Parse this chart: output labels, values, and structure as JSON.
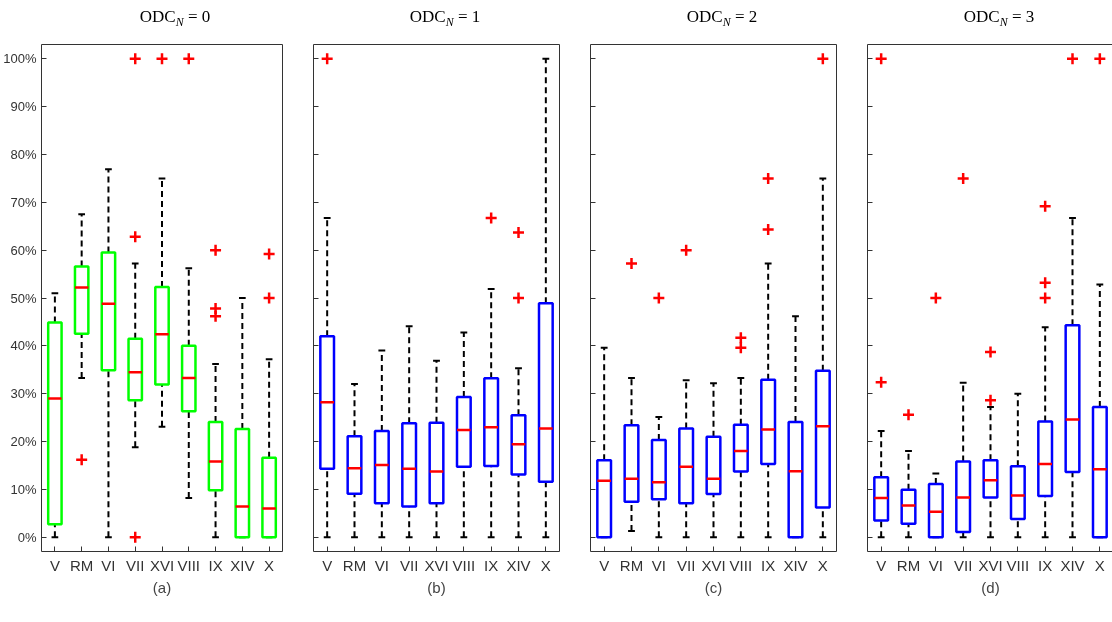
{
  "chart_data": [
    {
      "type": "box",
      "title": "ODC$_{N}$ = 0",
      "xlabel": "(a)",
      "color": "#00ff00",
      "categories": [
        "V",
        "RM",
        "VI",
        "VII",
        "XVI",
        "VIII",
        "IX",
        "XIV",
        "X"
      ],
      "ylim": [
        -3,
        103
      ],
      "yticks": [
        {
          "value": 0,
          "label": "0%"
        },
        {
          "value": 10,
          "label": "10%"
        },
        {
          "value": 20,
          "label": "20%"
        },
        {
          "value": 30,
          "label": "30%"
        },
        {
          "value": 40,
          "label": "40%"
        },
        {
          "value": 50,
          "label": "50%"
        },
        {
          "value": 60,
          "label": "60%"
        },
        {
          "value": 70,
          "label": "70%"
        },
        {
          "value": 80,
          "label": "80%"
        },
        {
          "value": 90,
          "label": "90%"
        },
        {
          "value": 100,
          "label": "100%"
        }
      ],
      "grid": false,
      "boxes": [
        {
          "low": 0,
          "q1": 2.7,
          "median": 29,
          "q3": 44.9,
          "high": 51
        },
        {
          "low": 33.3,
          "q1": 42.5,
          "median": 52.2,
          "q3": 56.6,
          "high": 67.5,
          "outliers": [
            16.2
          ]
        },
        {
          "low": 0,
          "q1": 34.9,
          "median": 48.8,
          "q3": 59.5,
          "high": 76.9
        },
        {
          "low": 18.8,
          "q1": 28.6,
          "median": 34.5,
          "q3": 41.5,
          "high": 57.2,
          "outliers": [
            100,
            62.8,
            0
          ]
        },
        {
          "low": 23.1,
          "q1": 31.9,
          "median": 42.4,
          "q3": 52.3,
          "high": 75,
          "outliers": [
            100
          ]
        },
        {
          "low": 8.2,
          "q1": 26.3,
          "median": 33.3,
          "q3": 40,
          "high": 56.2,
          "outliers": [
            100
          ]
        },
        {
          "low": 0,
          "q1": 9.8,
          "median": 15.8,
          "q3": 24.1,
          "high": 36.2,
          "outliers": [
            60,
            47.8,
            46.2
          ]
        },
        {
          "low": 0,
          "q1": 0,
          "median": 6.4,
          "q3": 22.6,
          "high": 50
        },
        {
          "low": 0,
          "q1": 0,
          "median": 6,
          "q3": 16.6,
          "high": 37.2,
          "outliers": [
            59.2,
            50
          ]
        }
      ]
    },
    {
      "type": "box",
      "title": "ODC$_{N}$ = 1",
      "xlabel": "(b)",
      "color": "#0000ff",
      "categories": [
        "V",
        "RM",
        "VI",
        "VII",
        "XVI",
        "VIII",
        "IX",
        "XIV",
        "X"
      ],
      "ylim": [
        -3,
        103
      ],
      "yticks": [
        0,
        10,
        20,
        30,
        40,
        50,
        60,
        70,
        80,
        90,
        100
      ],
      "tick_labels": "x",
      "grid": false,
      "boxes": [
        {
          "low": 0,
          "q1": 14.3,
          "median": 28.2,
          "q3": 42,
          "high": 66.7,
          "outliers": [
            100
          ]
        },
        {
          "low": 0,
          "q1": 9.1,
          "median": 14.4,
          "q3": 21.1,
          "high": 32
        },
        {
          "low": 0,
          "q1": 7.1,
          "median": 15.1,
          "q3": 22.2,
          "high": 39
        },
        {
          "low": 0,
          "q1": 6.4,
          "median": 14.3,
          "q3": 23.8,
          "high": 44.1
        },
        {
          "low": 0,
          "q1": 7.1,
          "median": 13.7,
          "q3": 23.9,
          "high": 36.9
        },
        {
          "low": 0,
          "q1": 14.7,
          "median": 22.4,
          "q3": 29.3,
          "high": 42.8
        },
        {
          "low": 0,
          "q1": 14.9,
          "median": 23,
          "q3": 33.2,
          "high": 51.9,
          "outliers": [
            66.7
          ]
        },
        {
          "low": 0,
          "q1": 13.1,
          "median": 19.4,
          "q3": 25.5,
          "high": 35.3,
          "outliers": [
            63.7,
            50
          ]
        },
        {
          "low": 0,
          "q1": 11.6,
          "median": 22.7,
          "q3": 48.9,
          "high": 100
        }
      ]
    },
    {
      "type": "box",
      "title": "ODC$_{N}$ = 2",
      "xlabel": "(c)",
      "color": "#0000ff",
      "categories": [
        "V",
        "RM",
        "VI",
        "VII",
        "XVI",
        "VIII",
        "IX",
        "XIV",
        "X"
      ],
      "ylim": [
        -3,
        103
      ],
      "yticks": [
        0,
        10,
        20,
        30,
        40,
        50,
        60,
        70,
        80,
        90,
        100
      ],
      "tick_labels": "x",
      "grid": false,
      "boxes": [
        {
          "low": 0,
          "q1": 0,
          "median": 11.8,
          "q3": 16.1,
          "high": 39.6
        },
        {
          "low": 1.3,
          "q1": 7.4,
          "median": 12.2,
          "q3": 23.4,
          "high": 33.3,
          "outliers": [
            57.2
          ]
        },
        {
          "low": 0,
          "q1": 7.9,
          "median": 11.5,
          "q3": 20.3,
          "high": 25.1,
          "outliers": [
            50
          ]
        },
        {
          "low": 0,
          "q1": 7.1,
          "median": 14.7,
          "q3": 22.7,
          "high": 32.8,
          "outliers": [
            60
          ]
        },
        {
          "low": 0,
          "q1": 9,
          "median": 12.2,
          "q3": 21,
          "high": 32.2
        },
        {
          "low": 0,
          "q1": 13.7,
          "median": 18,
          "q3": 23.5,
          "high": 33.3,
          "outliers": [
            41.7,
            39.6
          ]
        },
        {
          "low": 0,
          "q1": 15.3,
          "median": 22.5,
          "q3": 32.9,
          "high": 57.2,
          "outliers": [
            75,
            64.3
          ]
        },
        {
          "low": 0,
          "q1": 0,
          "median": 13.8,
          "q3": 24.1,
          "high": 46.2
        },
        {
          "low": 0,
          "q1": 6.2,
          "median": 23.2,
          "q3": 34.8,
          "high": 75,
          "outliers": [
            100
          ]
        }
      ]
    },
    {
      "type": "box",
      "title": "ODC$_{N}$ = 3",
      "xlabel": "(d)",
      "color": "#0000ff",
      "categories": [
        "V",
        "RM",
        "VI",
        "VII",
        "XVI",
        "VIII",
        "IX",
        "XIV",
        "X"
      ],
      "ylim": [
        -3,
        103
      ],
      "yticks": [
        0,
        10,
        20,
        30,
        40,
        50,
        60,
        70,
        80,
        90,
        100
      ],
      "tick_labels": "x",
      "grid": false,
      "boxes": [
        {
          "low": 0,
          "q1": 3.5,
          "median": 8.2,
          "q3": 12.5,
          "high": 22.2,
          "outliers": [
            100,
            32.4
          ]
        },
        {
          "low": 0,
          "q1": 2.8,
          "median": 6.6,
          "q3": 9.9,
          "high": 18,
          "outliers": [
            25.6
          ]
        },
        {
          "low": 0,
          "q1": 0,
          "median": 5.3,
          "q3": 11.1,
          "high": 13.3,
          "outliers": [
            50
          ]
        },
        {
          "low": 0,
          "q1": 1.1,
          "median": 8.3,
          "q3": 15.8,
          "high": 32.3,
          "outliers": [
            75
          ]
        },
        {
          "low": 0,
          "q1": 8.3,
          "median": 11.9,
          "q3": 16.1,
          "high": 27.2,
          "outliers": [
            38.7,
            28.6
          ]
        },
        {
          "low": 0,
          "q1": 3.8,
          "median": 8.7,
          "q3": 14.8,
          "high": 30
        },
        {
          "low": 0,
          "q1": 8.6,
          "median": 15.3,
          "q3": 24.2,
          "high": 43.9,
          "outliers": [
            69.2,
            53.2,
            50
          ]
        },
        {
          "low": 0,
          "q1": 13.6,
          "median": 24.6,
          "q3": 44.3,
          "high": 66.7,
          "outliers": [
            100
          ]
        },
        {
          "low": 0,
          "q1": 0,
          "median": 14.2,
          "q3": 27.2,
          "high": 52.8,
          "outliers": [
            100
          ]
        }
      ]
    }
  ]
}
